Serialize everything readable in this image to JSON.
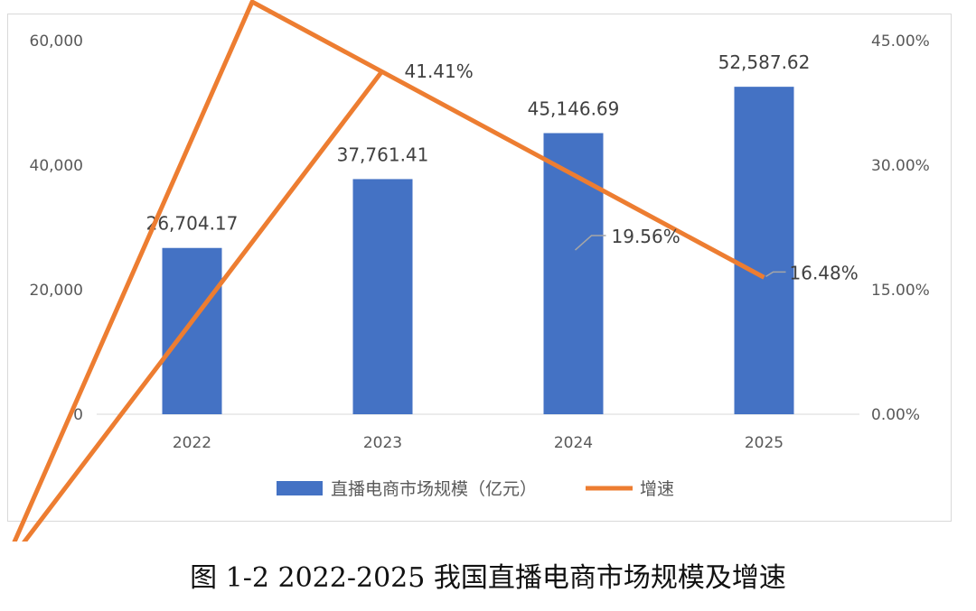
{
  "chart_data": {
    "type": "bar+line",
    "categories": [
      "2022",
      "2023",
      "2024",
      "2025"
    ],
    "series": [
      {
        "name": "直播电商市场规模（亿元）",
        "type": "bar",
        "axis": "left",
        "values": [
          26704.17,
          37761.41,
          45146.69,
          52587.62
        ],
        "labels": [
          "26,704.17",
          "37,761.41",
          "45,146.69",
          "52,587.62"
        ],
        "color": "#4472C4"
      },
      {
        "name": "增速",
        "type": "line",
        "axis": "right",
        "values": [
          null,
          41.41,
          19.56,
          16.48
        ],
        "labels": [
          "",
          "41.41%",
          "19.56%",
          "16.48%"
        ],
        "color": "#ED7D31"
      }
    ],
    "left_axis": {
      "ylim": [
        0,
        60000
      ],
      "ticks": [
        "0",
        "20,000",
        "40,000",
        "60,000"
      ]
    },
    "right_axis": {
      "ylim": [
        0,
        45
      ],
      "ticks": [
        "0.00%",
        "15.00%",
        "30.00%",
        "45.00%"
      ]
    },
    "grid": false,
    "legend": "bottom"
  },
  "caption": "图 1-2 2022-2025 我国直播电商市场规模及增速"
}
